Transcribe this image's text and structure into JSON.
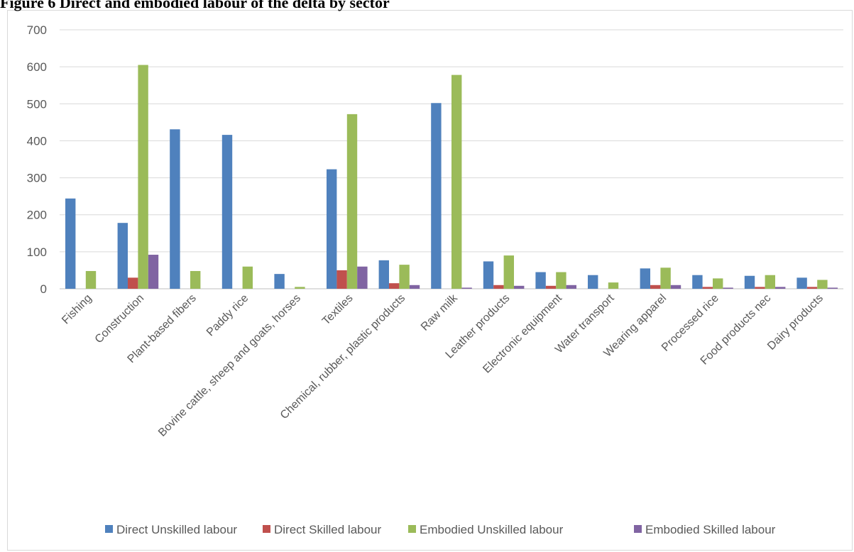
{
  "figure_title": "Figure 6 Direct and embodied labour of the delta by sector",
  "chart_data": {
    "type": "bar",
    "title": "",
    "xlabel": "",
    "ylabel": "",
    "ylim": [
      0,
      700
    ],
    "yticks": [
      0,
      100,
      200,
      300,
      400,
      500,
      600,
      700
    ],
    "grid": true,
    "legend_position": "bottom",
    "categories": [
      "Fishing",
      "Construction",
      "Plant-based fibers",
      "Paddy rice",
      "Bovine cattle, sheep and goats, horses",
      "Textiles",
      "Chemical, rubber, plastic products",
      "Raw milk",
      "Leather products",
      "Electronic equipment",
      "Water transport",
      "Wearing apparel",
      "Processed rice",
      "Food products nec",
      "Dairy products"
    ],
    "series": [
      {
        "name": "Direct  Unskilled labour",
        "color": "#4f81bd",
        "values": [
          244,
          178,
          431,
          416,
          40,
          323,
          77,
          502,
          74,
          45,
          37,
          55,
          37,
          35,
          30
        ]
      },
      {
        "name": "Direct  Skilled labour",
        "color": "#c0504d",
        "values": [
          0,
          30,
          0,
          0,
          0,
          50,
          15,
          0,
          10,
          8,
          0,
          10,
          5,
          5,
          5
        ]
      },
      {
        "name": "Embodied Unskilled labour",
        "color": "#9bbb59",
        "values": [
          48,
          605,
          48,
          60,
          5,
          472,
          65,
          578,
          90,
          45,
          17,
          57,
          28,
          37,
          24
        ]
      },
      {
        "name": "Embodied Skilled labour",
        "color": "#8064a2",
        "values": [
          0,
          92,
          0,
          0,
          0,
          60,
          10,
          3,
          8,
          10,
          0,
          10,
          3,
          5,
          3
        ]
      }
    ]
  }
}
